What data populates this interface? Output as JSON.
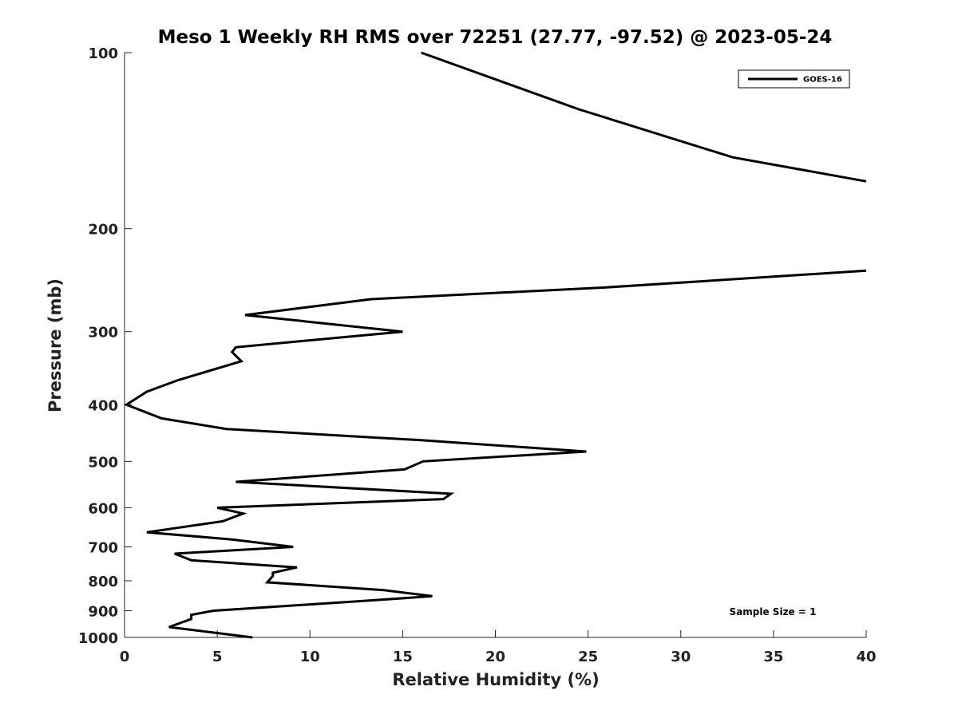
{
  "chart_data": {
    "type": "line",
    "title": "Meso 1 Weekly RH RMS over 72251 (27.77, -97.52) @ 2023-05-24",
    "xlabel": "Relative Humidity (%)",
    "ylabel": "Pressure (mb)",
    "xlim": [
      0,
      40
    ],
    "ylim": [
      100,
      1000
    ],
    "yscale": "log",
    "y_inverted": true,
    "grid": false,
    "xticks": [
      0,
      5,
      10,
      15,
      20,
      25,
      30,
      35,
      40
    ],
    "yticks": [
      100,
      200,
      300,
      400,
      500,
      600,
      700,
      800,
      900,
      1000
    ],
    "legend": {
      "position": "top-right",
      "entries": [
        "GOES-16"
      ]
    },
    "annotation": "Sample Size = 1",
    "series": [
      {
        "name": "GOES-16",
        "color": "#000000",
        "segments": [
          [
            [
              16.0,
              100
            ],
            [
              24.5,
              125
            ],
            [
              32.8,
              151
            ],
            [
              40.0,
              166
            ]
          ],
          [
            [
              40.0,
              236
            ],
            [
              26.0,
              252
            ],
            [
              13.3,
              264
            ],
            [
              6.5,
              281
            ],
            [
              15.0,
              300
            ],
            [
              6.0,
              319
            ],
            [
              5.8,
              325
            ],
            [
              6.3,
              337
            ],
            [
              2.9,
              363
            ],
            [
              1.2,
              380
            ],
            [
              0.1,
              400
            ],
            [
              2.0,
              422
            ],
            [
              5.5,
              440
            ],
            [
              16.0,
              460
            ],
            [
              24.9,
              481
            ],
            [
              16.1,
              500
            ],
            [
              15.1,
              516
            ],
            [
              6.0,
              542
            ],
            [
              17.6,
              568
            ],
            [
              17.2,
              580
            ],
            [
              5.0,
              600
            ],
            [
              6.4,
              614
            ],
            [
              5.3,
              633
            ],
            [
              1.2,
              661
            ],
            [
              5.8,
              680
            ],
            [
              9.1,
              700
            ],
            [
              2.7,
              719
            ],
            [
              3.6,
              738
            ],
            [
              9.3,
              759
            ],
            [
              8.0,
              775
            ],
            [
              8.0,
              785
            ],
            [
              7.7,
              805
            ],
            [
              14.0,
              830
            ],
            [
              16.6,
              850
            ],
            [
              13.2,
              865
            ],
            [
              4.8,
              900
            ],
            [
              3.6,
              915
            ],
            [
              3.6,
              930
            ],
            [
              2.4,
              960
            ],
            [
              6.9,
              1000
            ]
          ]
        ]
      }
    ]
  }
}
